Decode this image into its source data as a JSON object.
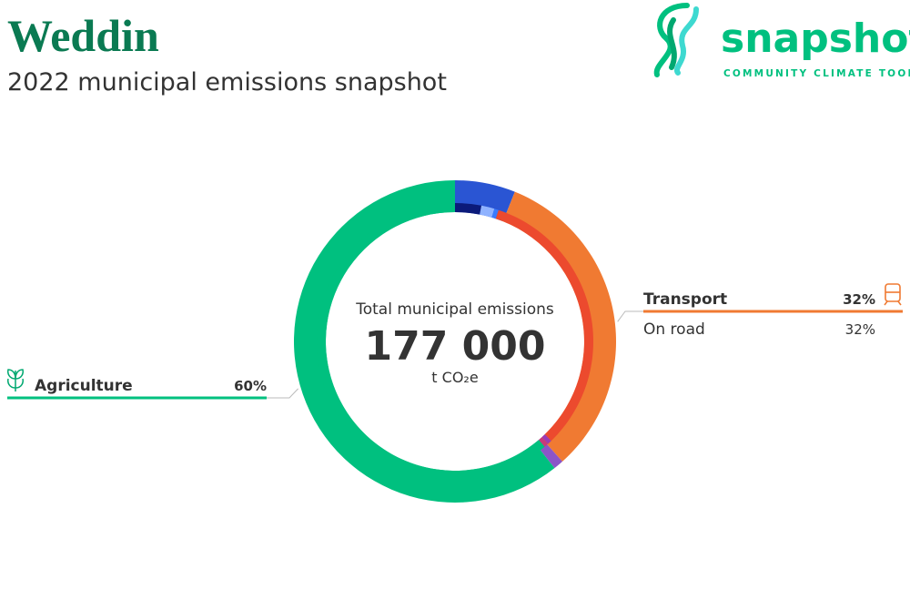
{
  "chart_data": {
    "type": "donut",
    "title": "Weddin",
    "subtitle": "2022 municipal emissions snapshot",
    "center_label": "Total municipal emissions",
    "total_label": "177 000",
    "unit": "t CO₂e",
    "categories": [
      null,
      "Transport",
      null,
      "Agriculture"
    ],
    "values": [
      6,
      32,
      1,
      60
    ],
    "value_labels": [
      null,
      "32%",
      null,
      "60%"
    ],
    "colors": [
      "#2a55d3",
      "#f07a32",
      "#8b55c8",
      "#00c07f"
    ],
    "inner": {
      "categories": [
        null,
        null,
        null,
        "On road",
        null,
        null,
        null
      ],
      "values": [
        3,
        1.5,
        0.5,
        32,
        0.5,
        0.5,
        60
      ],
      "value_labels": [
        null,
        null,
        null,
        "32%",
        null,
        null,
        null
      ],
      "colors": [
        "#0b1a7a",
        "#8fb2ff",
        "#3a7bff",
        "#ec4a2e",
        "#9b3bb5",
        "#c83a7a",
        "#00c07f"
      ]
    }
  },
  "logo": {
    "name": "snapshot",
    "tagline": "COMMUNITY CLIMATE TOOL"
  }
}
